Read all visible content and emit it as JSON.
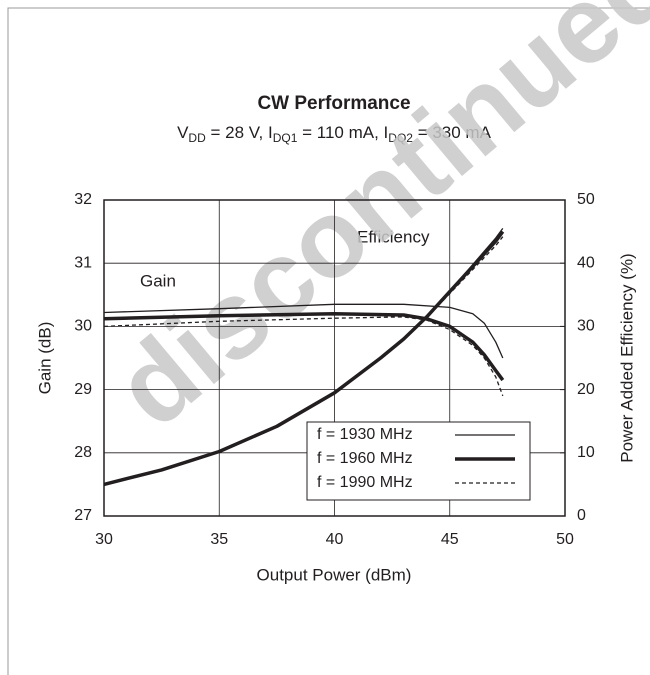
{
  "chart_data": {
    "type": "line",
    "watermark": "discontinued",
    "title": "CW Performance",
    "subtitle_parts": [
      "V",
      "DD",
      " = 28 V, I",
      "DQ1",
      " = 110 mA, I",
      "DQ2",
      " = 330 mA"
    ],
    "xlabel": "Output Power (dBm)",
    "ylabel": "Gain (dB)",
    "y2label": "Power Added Efficiency (%)",
    "annotations": [
      "Gain",
      "Efficiency"
    ],
    "xlim": [
      30,
      50
    ],
    "xticks": [
      30,
      35,
      40,
      45,
      50
    ],
    "ylim": [
      27,
      32
    ],
    "yticks": [
      27,
      28,
      29,
      30,
      31,
      32
    ],
    "y2lim": [
      0,
      50
    ],
    "y2ticks": [
      0,
      10,
      20,
      30,
      40,
      50
    ],
    "grid": true,
    "legend": "lower right",
    "series": [
      {
        "name": "f = 1930 MHz",
        "color": "#231f20",
        "width": 1.3,
        "dash": "none",
        "x": [
          30,
          35,
          40,
          43,
          45,
          46,
          46.5,
          47,
          47.3
        ],
        "values": [
          30.22,
          30.28,
          30.35,
          30.35,
          30.3,
          30.2,
          30.05,
          29.75,
          29.5
        ]
      },
      {
        "name": "f = 1960 MHz",
        "color": "#231f20",
        "width": 3.5,
        "dash": "none",
        "x": [
          30,
          35,
          40,
          43,
          44,
          45,
          46,
          46.5,
          47,
          47.3
        ],
        "values": [
          30.12,
          30.17,
          30.2,
          30.18,
          30.12,
          30.0,
          29.75,
          29.55,
          29.3,
          29.15
        ]
      },
      {
        "name": "f = 1990 MHz",
        "color": "#231f20",
        "width": 1.3,
        "dash": "4 3",
        "x": [
          30,
          35,
          40,
          43,
          44,
          45,
          46,
          46.5,
          47,
          47.3
        ],
        "values": [
          30.0,
          30.08,
          30.13,
          30.15,
          30.1,
          29.95,
          29.7,
          29.5,
          29.2,
          28.9
        ]
      },
      {
        "color": "#231f20",
        "width": 1.3,
        "dash": "none",
        "axis": "y2",
        "x": [
          30,
          32.5,
          35,
          37.5,
          40,
          42,
          43,
          44,
          45,
          46,
          47,
          47.3
        ],
        "values": [
          5,
          7.3,
          10.2,
          14.2,
          19.5,
          25,
          28,
          31.5,
          35.6,
          39.8,
          44,
          45.5
        ]
      },
      {
        "color": "#231f20",
        "width": 3.5,
        "dash": "none",
        "axis": "y2",
        "x": [
          30,
          32.5,
          35,
          37.5,
          40,
          42,
          43,
          44,
          45,
          46,
          47,
          47.3
        ],
        "values": [
          5,
          7.3,
          10.2,
          14.2,
          19.5,
          25,
          28,
          31.5,
          35.5,
          39.5,
          43.5,
          45
        ]
      },
      {
        "color": "#231f20",
        "width": 1.3,
        "dash": "4 3",
        "axis": "y2",
        "x": [
          30,
          32.5,
          35,
          37.5,
          40,
          42,
          43,
          44,
          45,
          46,
          47,
          47.3
        ],
        "values": [
          5,
          7.3,
          10.2,
          14.2,
          19.5,
          25,
          28,
          31.4,
          35.2,
          39,
          42.8,
          44.2
        ]
      }
    ]
  }
}
